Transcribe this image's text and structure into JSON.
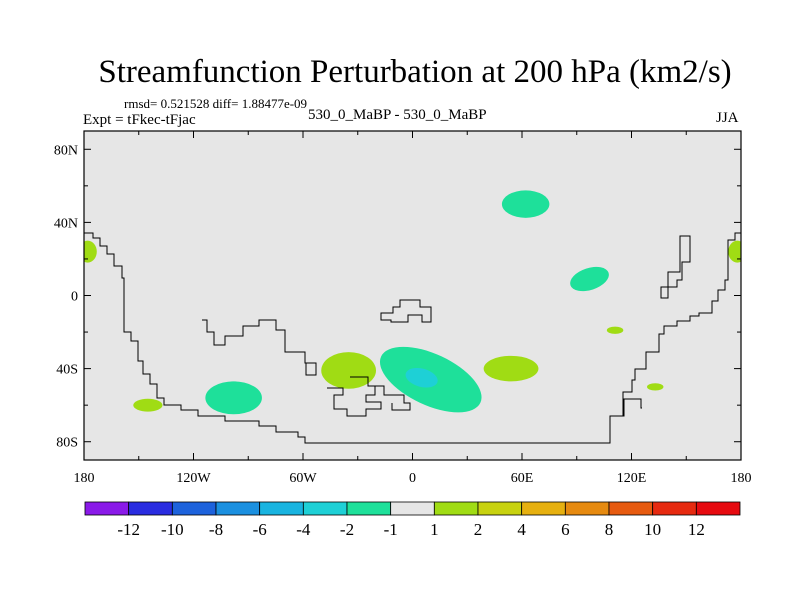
{
  "title": "Streamfunction Perturbation at 200 hPa (km2/s)",
  "stats": "rmsd= 0.521528 diff= 1.88477e-09",
  "experiment": "Expt = tFkec-tFjac",
  "runs": "530_0_MaBP - 530_0_MaBP",
  "season": "JJA",
  "lat_ticks": [
    "80N",
    "40N",
    "0",
    "40S",
    "80S"
  ],
  "lon_ticks": [
    "180",
    "120W",
    "60W",
    "0",
    "60E",
    "120E",
    "180"
  ],
  "colorbar": {
    "labels": [
      "-12",
      "-10",
      "-8",
      "-6",
      "-4",
      "-2",
      "-1",
      "1",
      "2",
      "4",
      "6",
      "8",
      "10",
      "12"
    ],
    "colors": [
      "#8a1ae8",
      "#2a2ce0",
      "#1d62dc",
      "#1b90e0",
      "#19b4e0",
      "#1ed0d6",
      "#1ee09a",
      "#e6e6e6",
      "#a0dc14",
      "#c8d210",
      "#e6b010",
      "#e68a10",
      "#e65a10",
      "#e62a10",
      "#e60a10"
    ]
  },
  "map_background": "#e6e6e6",
  "chart_data": {
    "type": "heatmap",
    "title": "Streamfunction Perturbation at 200 hPa (km2/s)",
    "xlim": [
      -180,
      180
    ],
    "ylim": [
      -90,
      90
    ],
    "x_ticks": [
      -180,
      -120,
      -60,
      0,
      60,
      120,
      180
    ],
    "y_ticks": [
      80,
      40,
      0,
      -40,
      -80
    ],
    "levels": [
      -12,
      -10,
      -8,
      -6,
      -4,
      -2,
      -1,
      1,
      2,
      4,
      6,
      8,
      10,
      12
    ],
    "features": [
      {
        "name": "positive-anomaly",
        "lon": -178,
        "lat": 24,
        "value": 1.5
      },
      {
        "name": "positive-anomaly",
        "lon": 178,
        "lat": 24,
        "value": 1.5
      },
      {
        "name": "positive-anomaly",
        "lon": -145,
        "lat": -60,
        "value": 1.5
      },
      {
        "name": "positive-anomaly",
        "lon": -35,
        "lat": -41,
        "value": 1.5
      },
      {
        "name": "positive-anomaly",
        "lon": 54,
        "lat": -40,
        "value": 1.5
      },
      {
        "name": "positive-anomaly",
        "lon": 111,
        "lat": -19,
        "value": 1.5
      },
      {
        "name": "positive-anomaly",
        "lon": 133,
        "lat": -50,
        "value": 1.5
      },
      {
        "name": "negative-anomaly",
        "lon": 62,
        "lat": 50,
        "value": -1.5
      },
      {
        "name": "negative-anomaly",
        "lon": 97,
        "lat": 9,
        "value": -1.5
      },
      {
        "name": "negative-anomaly",
        "lon": -98,
        "lat": -56,
        "value": -1.5
      },
      {
        "name": "negative-anomaly",
        "lon": 10,
        "lat": -46,
        "value": -1.5
      },
      {
        "name": "negative-anomaly",
        "lon": 5,
        "lat": -45,
        "value": -2.5
      }
    ]
  }
}
